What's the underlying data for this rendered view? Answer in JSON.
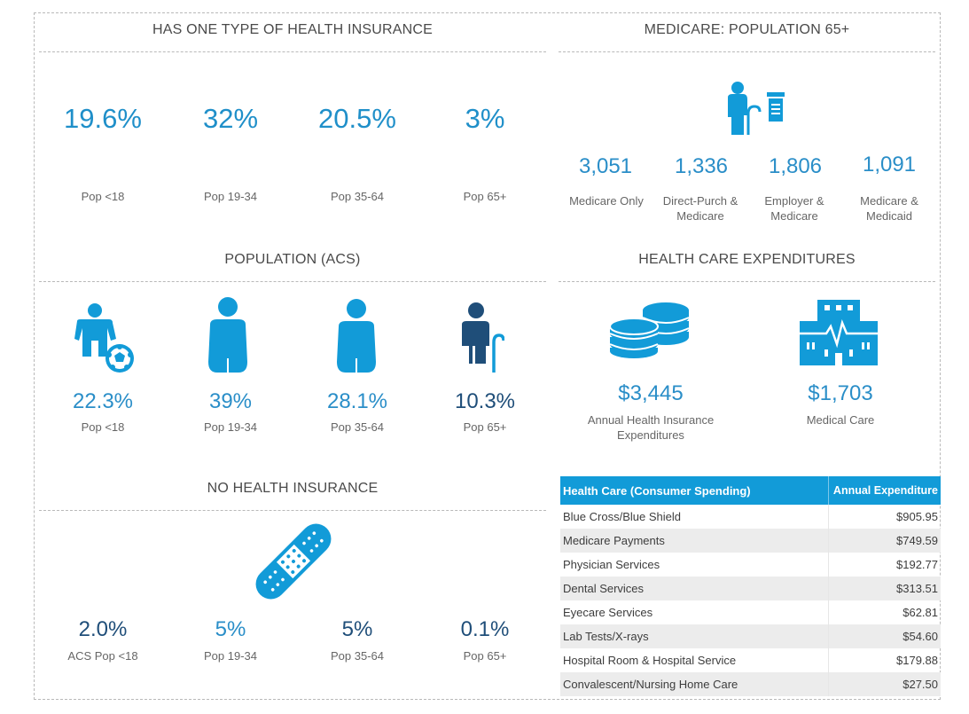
{
  "has_one_insurance": {
    "title": "HAS ONE TYPE OF HEALTH INSURANCE",
    "items": [
      {
        "value": "19.6%",
        "label": "Pop <18"
      },
      {
        "value": "32%",
        "label": "Pop 19-34"
      },
      {
        "value": "20.5%",
        "label": "Pop 35-64"
      },
      {
        "value": "3%",
        "label": "Pop 65+"
      }
    ]
  },
  "medicare": {
    "title": "MEDICARE: POPULATION 65+",
    "icon": "elderly-with-pill-bottle-icon",
    "items": [
      {
        "value": "3,051",
        "label": "Medicare Only"
      },
      {
        "value": "1,336",
        "label": "Direct-Purch & Medicare"
      },
      {
        "value": "1,806",
        "label": "Employer & Medicare"
      },
      {
        "value": "1,091",
        "label": "Medicare & Medicaid"
      }
    ]
  },
  "population": {
    "title": "POPULATION (ACS)",
    "items": [
      {
        "value": "22.3%",
        "label": "Pop <18",
        "icon": "child-with-ball-icon"
      },
      {
        "value": "39%",
        "label": "Pop 19-34",
        "icon": "person-icon"
      },
      {
        "value": "28.1%",
        "label": "Pop 35-64",
        "icon": "person-icon"
      },
      {
        "value": "10.3%",
        "label": "Pop 65+",
        "icon": "elderly-with-cane-icon"
      }
    ]
  },
  "expenditures": {
    "title": "HEALTH CARE EXPENDITURES",
    "items": [
      {
        "value": "$3,445",
        "label": "Annual Health Insurance Expenditures",
        "icon": "coins-icon"
      },
      {
        "value": "$1,703",
        "label": "Medical Care",
        "icon": "hospital-icon"
      }
    ]
  },
  "no_insurance": {
    "title": "NO HEALTH INSURANCE",
    "icon": "bandage-icon",
    "items": [
      {
        "value": "2.0%",
        "label": "ACS Pop <18"
      },
      {
        "value": "5%",
        "label": "Pop 19-34"
      },
      {
        "value": "5%",
        "label": "Pop 35-64"
      },
      {
        "value": "0.1%",
        "label": "Pop 65+"
      }
    ]
  },
  "spending_table": {
    "header_category": "Health Care (Consumer Spending)",
    "header_value": "Annual Expenditure",
    "rows": [
      {
        "category": "Blue Cross/Blue Shield",
        "value": "$905.95"
      },
      {
        "category": "Medicare Payments",
        "value": "$749.59"
      },
      {
        "category": "Physician Services",
        "value": "$192.77"
      },
      {
        "category": "Dental Services",
        "value": "$313.51"
      },
      {
        "category": "Eyecare Services",
        "value": "$62.81"
      },
      {
        "category": "Lab Tests/X-rays",
        "value": "$54.60"
      },
      {
        "category": "Hospital Room & Hospital Service",
        "value": "$179.88"
      },
      {
        "category": "Convalescent/Nursing Home Care",
        "value": "$27.50"
      }
    ]
  },
  "colors": {
    "accent": "#129bd8",
    "dark": "#1f4e79",
    "text": "#555555"
  }
}
